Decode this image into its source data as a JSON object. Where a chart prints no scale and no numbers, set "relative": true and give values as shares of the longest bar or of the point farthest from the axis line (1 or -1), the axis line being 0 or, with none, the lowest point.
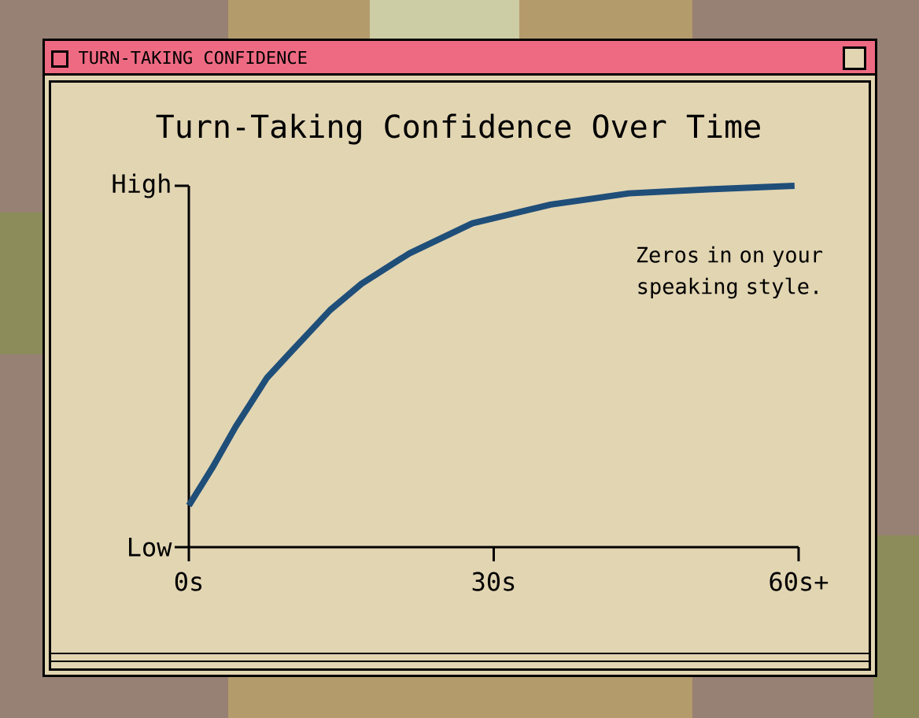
{
  "chart_data": {
    "type": "line",
    "title": "Turn-Taking Confidence Over Time",
    "annotations": [
      "TURN-TAKING CONFIDENCE",
      "Zeros in on your speaking style.",
      "High",
      "Low"
    ],
    "x": [
      0,
      2.3,
      4.6,
      7.7,
      10.1,
      13.9,
      17,
      21.7,
      27.9,
      35.6,
      43.3,
      51.1,
      59.6
    ],
    "series": [
      {
        "color": "#1f4e79",
        "values": [
          0.115,
          0.219,
          0.333,
          0.469,
          0.542,
          0.656,
          0.729,
          0.813,
          0.896,
          0.948,
          0.979,
          0.99,
          1
        ]
      }
    ],
    "relative": true,
    "xlim": [
      0,
      60
    ],
    "xticks": [
      {
        "value": 0,
        "label": "0s"
      },
      {
        "value": 30,
        "label": "30s"
      },
      {
        "value": 60,
        "label": "60s+"
      }
    ],
    "marker": "none",
    "line_style": "solid"
  }
}
